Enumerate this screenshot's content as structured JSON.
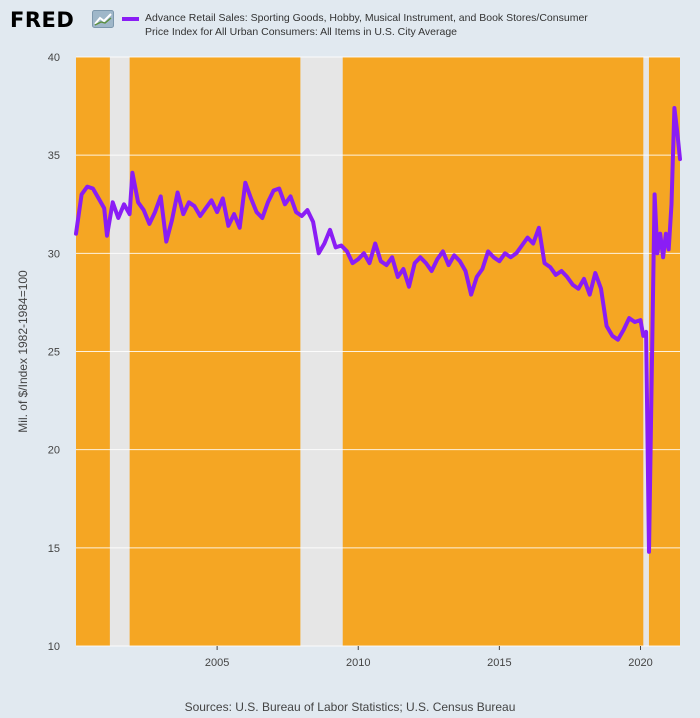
{
  "header": {
    "logo_text": "FRED",
    "logo_icon": "trend-chart-icon",
    "legend_label": "Advance Retail Sales: Sporting Goods, Hobby, Musical Instrument, and Book Stores/Consumer Price Index for All Urban Consumers: All Items in U.S. City Average"
  },
  "footer": {
    "source": "Sources: U.S. Bureau of Labor Statistics; U.S. Census Bureau"
  },
  "colors": {
    "plot_background": "#f5a623",
    "recession_shading": "#e6e6e6",
    "series": "#8a1df5",
    "page_background": "#e1e9f0"
  },
  "chart_data": {
    "type": "line",
    "ylabel": "Mil. of $/Index 1982-1984=100",
    "xlabel": "",
    "xlim": [
      2000.0,
      2021.4
    ],
    "ylim": [
      10,
      40
    ],
    "yticks": [
      10,
      15,
      20,
      25,
      30,
      35,
      40
    ],
    "xticks": [
      2005,
      2010,
      2015,
      2020
    ],
    "grid": true,
    "legend_position": "top",
    "recessions": [
      [
        2001.2,
        2001.9
      ],
      [
        2007.95,
        2009.45
      ],
      [
        2020.1,
        2020.3
      ]
    ],
    "series": [
      {
        "name": "Advance Retail Sales: Sporting Goods, Hobby, Musical Instrument, and Book Stores/Consumer Price Index for All Urban Consumers: All Items in U.S. City Average",
        "x": [
          2000.0,
          2000.2,
          2000.4,
          2000.6,
          2000.8,
          2001.0,
          2001.1,
          2001.3,
          2001.5,
          2001.7,
          2001.9,
          2002.0,
          2002.2,
          2002.4,
          2002.6,
          2002.8,
          2003.0,
          2003.2,
          2003.4,
          2003.6,
          2003.8,
          2004.0,
          2004.2,
          2004.4,
          2004.6,
          2004.8,
          2005.0,
          2005.2,
          2005.4,
          2005.6,
          2005.8,
          2006.0,
          2006.2,
          2006.4,
          2006.6,
          2006.8,
          2007.0,
          2007.2,
          2007.4,
          2007.6,
          2007.8,
          2008.0,
          2008.2,
          2008.4,
          2008.6,
          2008.8,
          2009.0,
          2009.2,
          2009.4,
          2009.6,
          2009.8,
          2010.0,
          2010.2,
          2010.4,
          2010.6,
          2010.8,
          2011.0,
          2011.2,
          2011.4,
          2011.6,
          2011.8,
          2012.0,
          2012.2,
          2012.4,
          2012.6,
          2012.8,
          2013.0,
          2013.2,
          2013.4,
          2013.6,
          2013.8,
          2014.0,
          2014.2,
          2014.4,
          2014.6,
          2014.8,
          2015.0,
          2015.2,
          2015.4,
          2015.6,
          2015.8,
          2016.0,
          2016.2,
          2016.4,
          2016.6,
          2016.8,
          2017.0,
          2017.2,
          2017.4,
          2017.6,
          2017.8,
          2018.0,
          2018.2,
          2018.4,
          2018.6,
          2018.8,
          2019.0,
          2019.2,
          2019.4,
          2019.6,
          2019.8,
          2020.0,
          2020.1,
          2020.2,
          2020.3,
          2020.4,
          2020.5,
          2020.6,
          2020.7,
          2020.8,
          2020.9,
          2021.0,
          2021.1,
          2021.2,
          2021.3,
          2021.4
        ],
        "values": [
          31.0,
          33.0,
          33.4,
          33.3,
          32.8,
          32.3,
          30.9,
          32.6,
          31.8,
          32.5,
          32.0,
          34.1,
          32.6,
          32.2,
          31.5,
          32.1,
          32.9,
          30.6,
          31.7,
          33.1,
          32.0,
          32.6,
          32.4,
          31.9,
          32.3,
          32.7,
          32.1,
          32.8,
          31.4,
          32.0,
          31.3,
          33.6,
          32.8,
          32.1,
          31.8,
          32.6,
          33.2,
          33.3,
          32.5,
          32.9,
          32.1,
          31.9,
          32.2,
          31.6,
          30.0,
          30.5,
          31.2,
          30.3,
          30.4,
          30.1,
          29.5,
          29.7,
          30.0,
          29.5,
          30.5,
          29.6,
          29.4,
          29.8,
          28.8,
          29.2,
          28.3,
          29.5,
          29.8,
          29.5,
          29.1,
          29.7,
          30.1,
          29.4,
          29.9,
          29.6,
          29.1,
          27.9,
          28.8,
          29.2,
          30.1,
          29.8,
          29.6,
          30.0,
          29.8,
          30.0,
          30.4,
          30.8,
          30.5,
          31.3,
          29.5,
          29.3,
          28.9,
          29.1,
          28.8,
          28.4,
          28.2,
          28.7,
          27.9,
          29.0,
          28.2,
          26.3,
          25.8,
          25.6,
          26.1,
          26.7,
          26.5,
          26.6,
          25.8,
          26.0,
          14.8,
          24.0,
          33.0,
          30.0,
          31.0,
          29.8,
          31.0,
          30.2,
          32.5,
          37.4,
          36.2,
          34.8
        ]
      }
    ]
  }
}
